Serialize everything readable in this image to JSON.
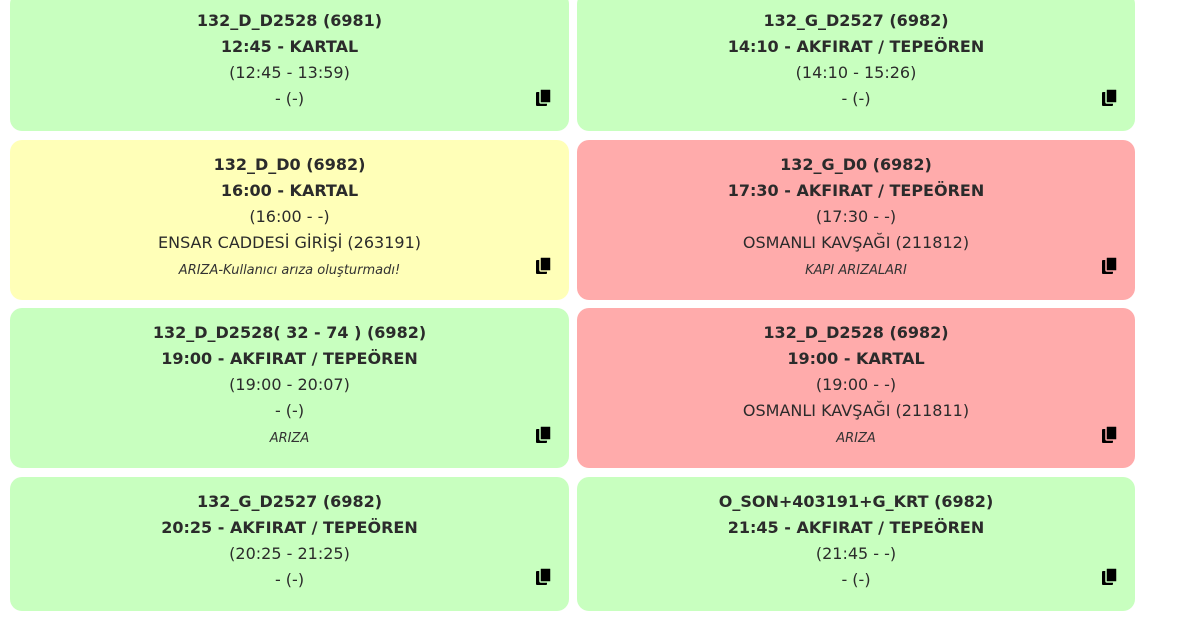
{
  "cards": [
    {
      "status": "green",
      "code": "132_D_D2528 (6981)",
      "departure": "12:45 - KARTAL",
      "time_range": "(12:45 - 13:59)",
      "location": "- (-)",
      "note": ""
    },
    {
      "status": "green",
      "code": "132_G_D2527 (6982)",
      "departure": "14:10 - AKFIRAT / TEPEÖREN",
      "time_range": "(14:10 - 15:26)",
      "location": "- (-)",
      "note": ""
    },
    {
      "status": "yellow",
      "code": "132_D_D0 (6982)",
      "departure": "16:00 - KARTAL",
      "time_range": "(16:00 - -)",
      "location": "ENSAR CADDESİ GİRİŞİ (263191)",
      "note": "ARIZA-Kullanıcı arıza oluşturmadı!"
    },
    {
      "status": "red",
      "code": "132_G_D0 (6982)",
      "departure": "17:30 - AKFIRAT / TEPEÖREN",
      "time_range": "(17:30 - -)",
      "location": "OSMANLI KAVŞAĞI (211812)",
      "note": "KAPI ARIZALARI"
    },
    {
      "status": "green",
      "code": "132_D_D2528( 32 - 74 ) (6982)",
      "departure": "19:00 - AKFIRAT / TEPEÖREN",
      "time_range": "(19:00 - 20:07)",
      "location": "- (-)",
      "note": "ARIZA"
    },
    {
      "status": "red",
      "code": "132_D_D2528 (6982)",
      "departure": "19:00 - KARTAL",
      "time_range": "(19:00 - -)",
      "location": "OSMANLI KAVŞAĞI (211811)",
      "note": "ARIZA"
    },
    {
      "status": "green",
      "code": "132_G_D2527 (6982)",
      "departure": "20:25 - AKFIRAT / TEPEÖREN",
      "time_range": "(20:25 - 21:25)",
      "location": "- (-)",
      "note": ""
    },
    {
      "status": "green",
      "code": "O_SON+403191+G_KRT (6982)",
      "departure": "21:45 - AKFIRAT / TEPEÖREN",
      "time_range": "(21:45 - -)",
      "location": "- (-)",
      "note": ""
    }
  ],
  "icons": {
    "copy": "copy-icon"
  },
  "colors": {
    "green": "#c8ffbf",
    "yellow": "#ffffb8",
    "red": "#ffabab"
  }
}
